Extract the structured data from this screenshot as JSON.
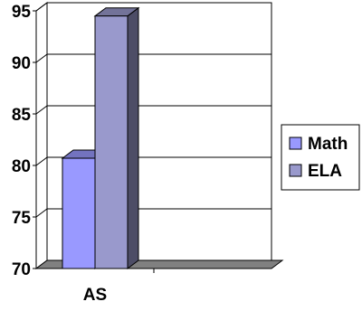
{
  "chart_data": {
    "type": "bar",
    "title": "",
    "xlabel": "",
    "ylabel": "",
    "categories": [
      "AS"
    ],
    "series": [
      {
        "name": "Math",
        "values": [
          80.7
        ],
        "color": "#9999FF"
      },
      {
        "name": "ELA",
        "values": [
          94.5
        ],
        "color": "#9999CC"
      }
    ],
    "ylim": [
      70,
      95
    ],
    "yticks": [
      "70",
      "75",
      "80",
      "85",
      "90",
      "95"
    ],
    "grid": true,
    "legend_position": "right",
    "style": "3d"
  }
}
